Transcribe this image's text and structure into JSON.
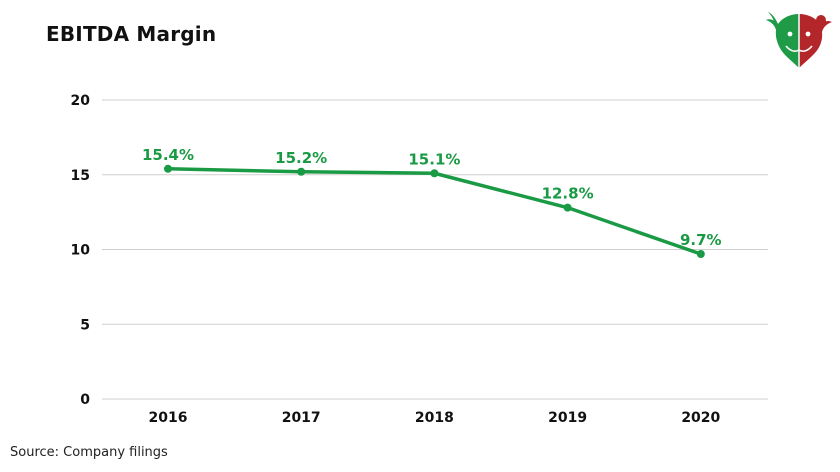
{
  "title": "EBITDA Margin",
  "source": "Source: Company filings",
  "logo_icon": "bull-bear-logo-icon",
  "colors": {
    "line": "#1a9a44",
    "label": "#1a9a44",
    "grid": "#cfcfcf",
    "axis_text": "#111111"
  },
  "chart_data": {
    "type": "line",
    "categories": [
      "2016",
      "2017",
      "2018",
      "2019",
      "2020"
    ],
    "values": [
      15.4,
      15.2,
      15.1,
      12.8,
      9.7
    ],
    "data_labels": [
      "15.4%",
      "15.2%",
      "15.1%",
      "12.8%",
      "9.7%"
    ],
    "y_ticks": [
      "0",
      "5",
      "10",
      "15",
      "20"
    ],
    "ylim": [
      0,
      20
    ],
    "grid": true,
    "legend": "none",
    "xlabel": "",
    "ylabel": ""
  }
}
